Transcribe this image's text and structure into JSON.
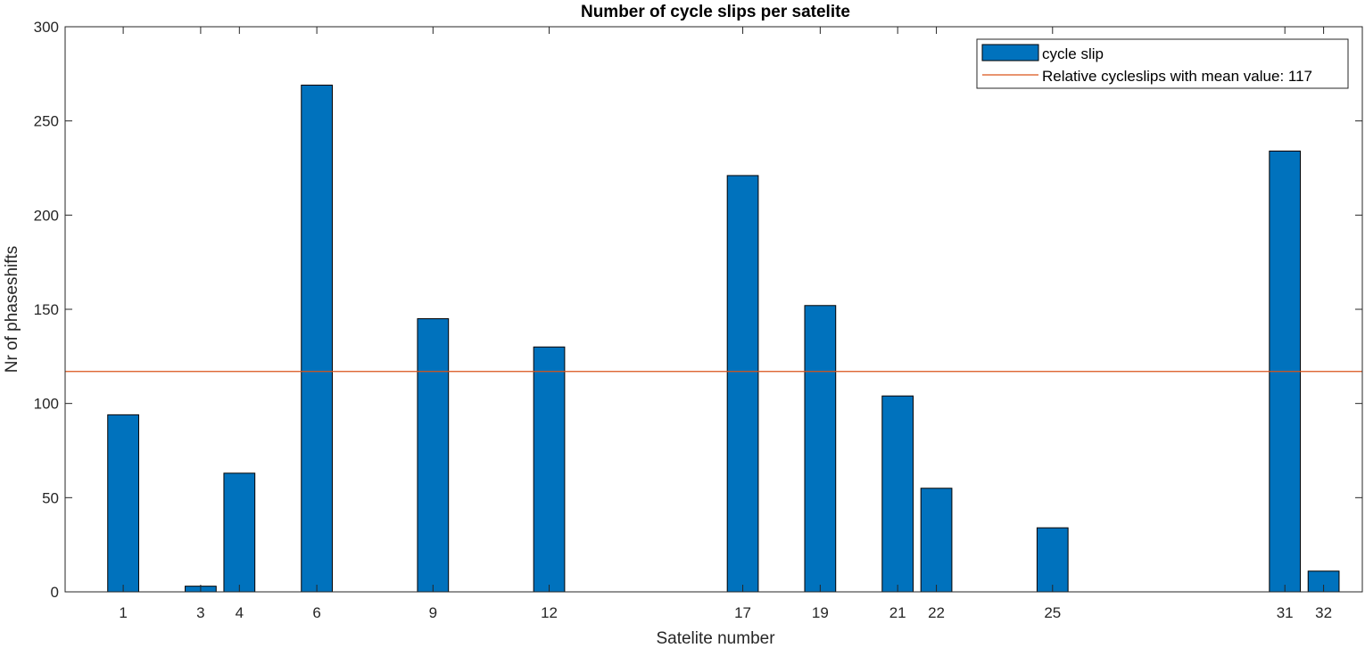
{
  "chart_data": {
    "type": "bar",
    "title": "Number of cycle slips per satelite",
    "xlabel": "Satelite number",
    "ylabel": "Nr of phaseshifts",
    "x": [
      1,
      3,
      4,
      6,
      9,
      12,
      17,
      19,
      21,
      22,
      25,
      31,
      32
    ],
    "values": [
      94,
      3,
      63,
      269,
      145,
      130,
      221,
      152,
      104,
      55,
      34,
      234,
      11
    ],
    "xlim": [
      -0.5,
      33
    ],
    "ylim": [
      0,
      300
    ],
    "yticks": [
      0,
      50,
      100,
      150,
      200,
      250,
      300
    ],
    "xtick_labels": [
      "1",
      "3",
      "4",
      "6",
      "9",
      "12",
      "17",
      "19",
      "21",
      "22",
      "25",
      "31",
      "32"
    ],
    "bar_color": "#0072BD",
    "series": [
      {
        "name": "cycle slip",
        "type": "bar",
        "color": "#0072BD"
      },
      {
        "name": "Relative cycleslips with mean value: 117",
        "type": "line",
        "value": 117,
        "color": "#D95319"
      }
    ],
    "legend": "top-right",
    "grid": false
  }
}
